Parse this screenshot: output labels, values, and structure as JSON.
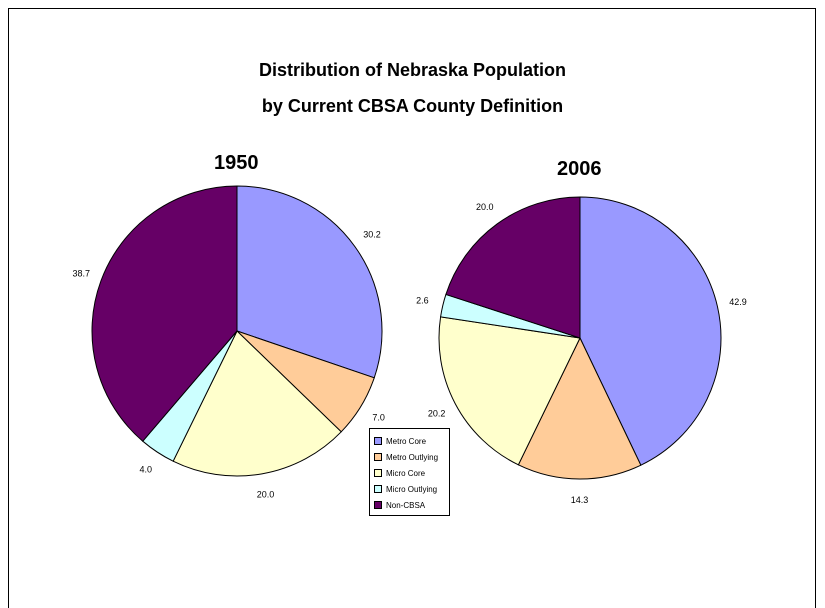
{
  "chart_data": [
    {
      "type": "pie",
      "title": "1950",
      "categories": [
        "Metro Core",
        "Metro Outlying",
        "Micro Core",
        "Micro Outlying",
        "Non-CBSA"
      ],
      "values": [
        30.2,
        7.0,
        20.0,
        4.0,
        38.7
      ],
      "labels": [
        "30.2",
        "7.0",
        "20.0",
        "4.0",
        "38.7"
      ]
    },
    {
      "type": "pie",
      "title": "2006",
      "categories": [
        "Metro Core",
        "Metro Outlying",
        "Micro Core",
        "Micro Outlying",
        "Non-CBSA"
      ],
      "values": [
        42.9,
        14.3,
        20.2,
        2.6,
        20.0
      ],
      "labels": [
        "42.9",
        "14.3",
        "20.2",
        "2.6",
        "20.0"
      ]
    }
  ],
  "header": {
    "title_line1": "Distribution of Nebraska Population",
    "title_line2": "by Current CBSA County Definition"
  },
  "legend": {
    "placement": "bottom-center",
    "items": [
      {
        "label": "Metro Core",
        "color": "#9999ff"
      },
      {
        "label": "Metro Outlying",
        "color": "#ffcc99"
      },
      {
        "label": "Micro Core",
        "color": "#ffffcc"
      },
      {
        "label": "Micro Outlying",
        "color": "#ccffff"
      },
      {
        "label": "Non-CBSA",
        "color": "#660066"
      }
    ]
  }
}
